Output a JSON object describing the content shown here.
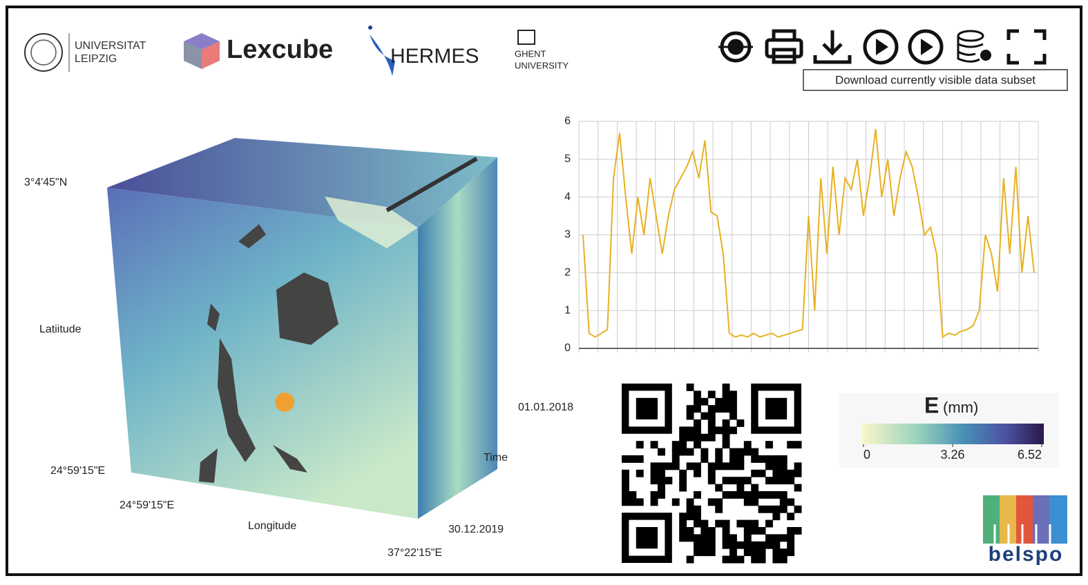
{
  "header": {
    "leipzig": [
      "UNIVERSITAT",
      "LEIPZIG"
    ],
    "lexcube": "Lexcube",
    "hermes": "HERMES",
    "ghent": [
      "GHENT",
      "UNIVERSITY"
    ]
  },
  "toolbar": {
    "tooltip": "Download currently visible data subset"
  },
  "cube": {
    "lat_top": "3°4'45\"N",
    "lat_label": "Latiitude",
    "lon_left": "24°59'15\"E",
    "lon_left2": "24°59'15\"E",
    "lon_label": "Longitude",
    "lon_right": "37°22'15\"E",
    "time_start": "01.01.2018",
    "time_label": "Time",
    "time_end": "30.12.2019"
  },
  "chart_data": {
    "type": "line",
    "color": "#e8b020",
    "grid": true,
    "ylim": [
      0,
      6
    ],
    "yticks": [
      0,
      1,
      2,
      3,
      4,
      5,
      6
    ],
    "values": [
      3,
      0.4,
      0.3,
      0.4,
      0.5,
      4.5,
      5.7,
      4,
      2.5,
      4,
      3,
      4.5,
      3.5,
      2.5,
      3.5,
      4.2,
      4.5,
      4.8,
      5.2,
      4.5,
      5.5,
      3.6,
      3.5,
      2.5,
      0.4,
      0.3,
      0.35,
      0.3,
      0.4,
      0.3,
      0.35,
      0.4,
      0.3,
      0.35,
      0.4,
      0.45,
      0.5,
      3.5,
      1,
      4.5,
      2.5,
      4.8,
      3,
      4.5,
      4.2,
      5,
      3.5,
      4.5,
      5.8,
      4,
      5,
      3.5,
      4.5,
      5.2,
      4.8,
      4,
      3,
      3.2,
      2.5,
      0.3,
      0.4,
      0.35,
      0.45,
      0.5,
      0.6,
      1,
      3,
      2.5,
      1.5,
      4.5,
      2.5,
      4.8,
      2,
      3.5,
      2
    ]
  },
  "colorbar": {
    "title": "E",
    "unit": "(mm)",
    "lim": [
      0,
      6.52
    ],
    "ticks": [
      0,
      3.26,
      6.52
    ]
  },
  "footer": {
    "belspo": "belspo"
  }
}
